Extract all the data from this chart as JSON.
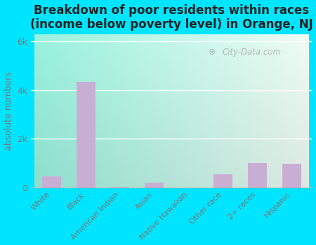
{
  "title": "Breakdown of poor residents within races\n(income below poverty level) in Orange, NJ",
  "categories": [
    "White",
    "Black",
    "American Indian",
    "Asian",
    "Native Hawaiian",
    "Other race",
    "2+ races",
    "Hispanic"
  ],
  "values": [
    450,
    4350,
    30,
    200,
    0,
    550,
    1000,
    980
  ],
  "bar_color": "#c9aed4",
  "ylabel": "absolute numbers",
  "yticks": [
    0,
    2000,
    4000,
    6000
  ],
  "ytick_labels": [
    "0",
    "2k",
    "4k",
    "6k"
  ],
  "ylim": [
    0,
    6300
  ],
  "bg_color_topleft": "#aaf0e0",
  "bg_color_topright": "#f0faf5",
  "bg_color_bottomleft": "#aaf0e0",
  "bg_color_bottomright": "#e8f8f0",
  "outer_bg_color": "#00e5ff",
  "title_fontsize": 12,
  "axis_color": "#777777",
  "watermark": "City-Data.com"
}
